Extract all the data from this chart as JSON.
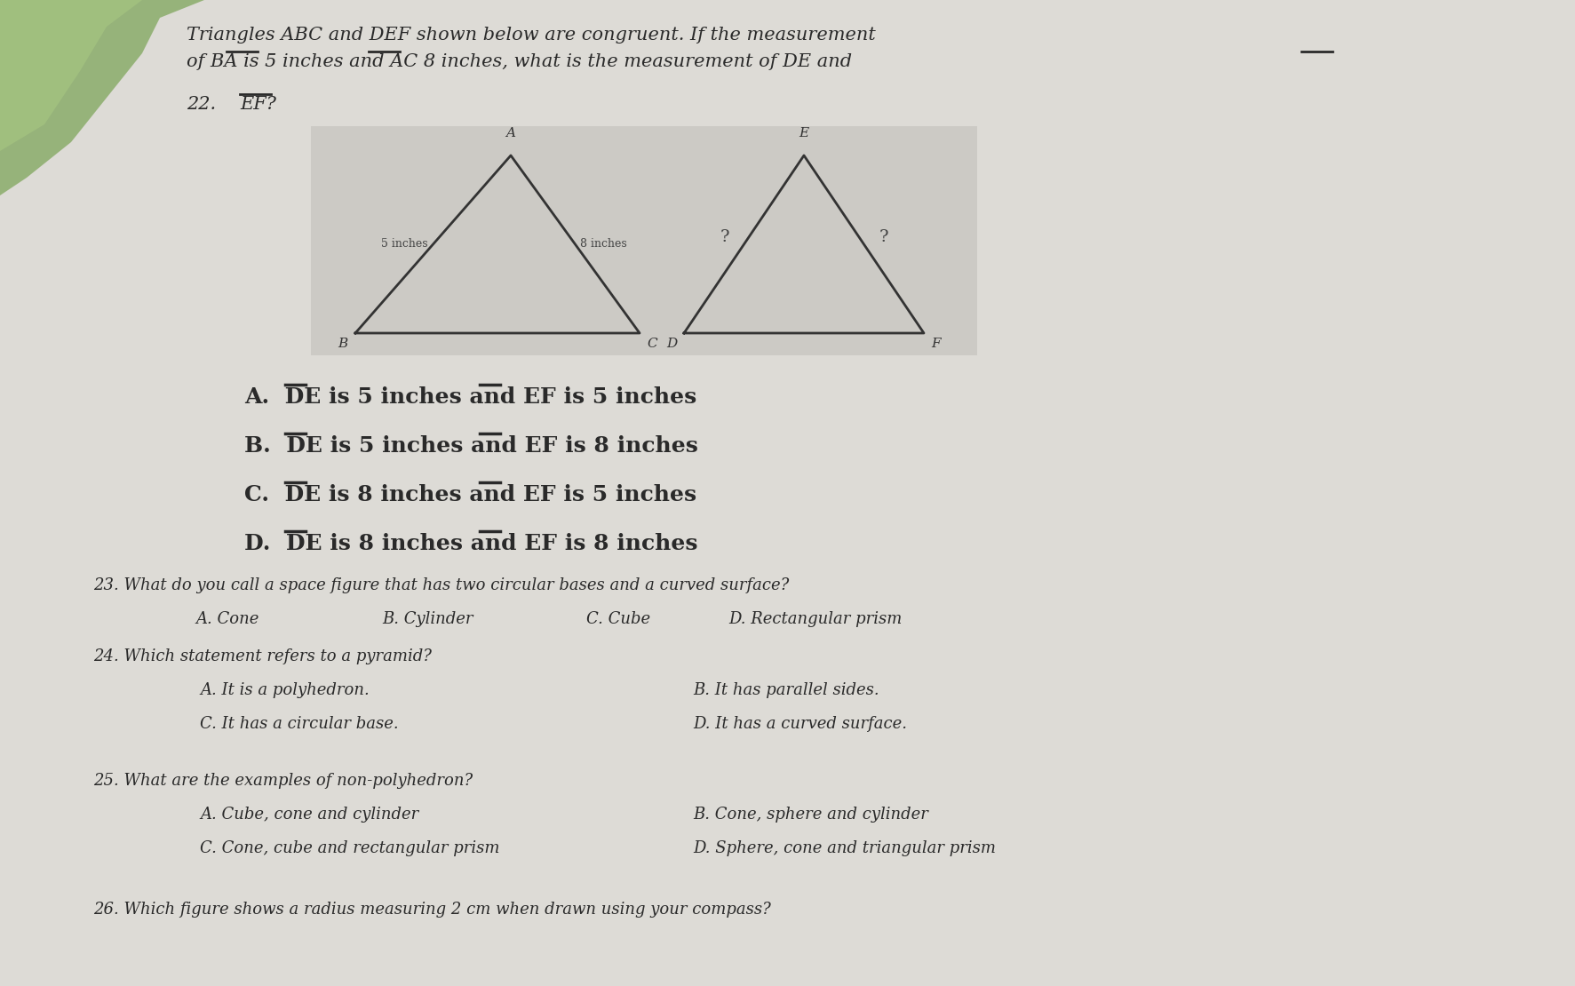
{
  "paper_color": "#dddbd6",
  "text_color": "#2a2a2a",
  "header_line1": "Triangles ABC and DEF shown below are congruent. If the measurement",
  "header_line2": "of BA is 5 inches and AC 8 inches, what is the measurement of DE and",
  "q22_num": "22.",
  "q22_ef": "EF?",
  "tri1_label_top": "A",
  "tri1_label_bl": "B",
  "tri1_label_br": "C",
  "tri1_side_left": "5 inches",
  "tri1_side_right": "8 inches",
  "tri2_label_top": "E",
  "tri2_label_bl": "D",
  "tri2_label_br": "F",
  "tri2_side_left": "?",
  "tri2_side_right": "?",
  "answers": [
    [
      "A.",
      "DE",
      " is 5 inches and ",
      "EF",
      " is 5 inches"
    ],
    [
      "B.",
      "DE",
      " is 5 inches and ",
      "EF",
      " is 8 inches"
    ],
    [
      "C.",
      "DE",
      " is 8 inches and ",
      "EF",
      " is 5 inches"
    ],
    [
      "D.",
      "DE",
      " is 8 inches and ",
      "EF",
      " is 8 inches"
    ]
  ],
  "q23_text": "23. What do you call a space figure that has two circular bases and a curved surface?",
  "q23_opts": [
    "A. Cone",
    "B. Cylinder",
    "C. Cube",
    "D. Rectangular prism"
  ],
  "q24_text": "24. Which statement refers to a pyramid?",
  "q24_left": [
    "A. It is a polyhedron.",
    "C. It has a circular base."
  ],
  "q24_right": [
    "B. It has parallel sides.",
    "D. It has a curved surface."
  ],
  "q25_text": "25. What are the examples of non-polyhedron?",
  "q25_left": [
    "A. Cube, cone and cylinder",
    "C. Cone, cube and rectangular prism"
  ],
  "q25_right": [
    "B. Cone, sphere and cylinder",
    "D. Sphere, cone and triangular prism"
  ],
  "q26_text": "26. Which figure shows a radius measuring 2 cm when drawn using your compass?"
}
